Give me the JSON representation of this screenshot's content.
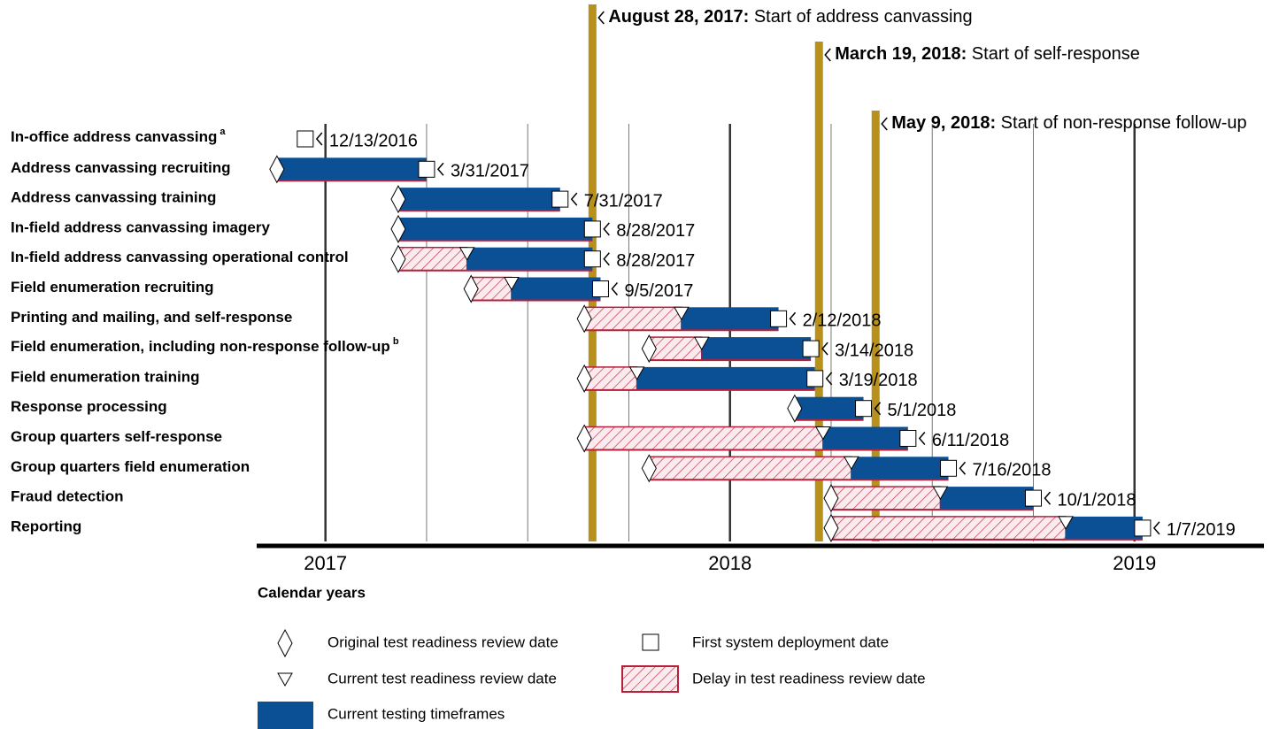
{
  "chart_data": {
    "type": "gantt",
    "x_label": "Calendar years",
    "xlim": [
      2016.83,
      2019.32
    ],
    "xticks": [
      2017,
      2018,
      2019
    ],
    "minor_xticks": [
      2017.25,
      2017.5,
      2017.75,
      2018.25,
      2018.5,
      2018.75
    ],
    "colors": {
      "bar": "#0b4f95",
      "delay": "#b5213b",
      "milestone": "#b8901c"
    },
    "milestones": [
      {
        "value": 2017.66,
        "date_label": "August 28, 2017:",
        "text": "Start of address canvassing"
      },
      {
        "value": 2018.22,
        "date_label": "March 19, 2018:",
        "text": "Start of self-response"
      },
      {
        "value": 2018.36,
        "date_label": "May 9, 2018:",
        "text": "Start of non-response follow-up"
      }
    ],
    "tasks": [
      {
        "name": "In-office address canvassing",
        "note": "a",
        "original": null,
        "current": null,
        "deploy": {
          "value": 2016.95,
          "label": "12/13/2016"
        }
      },
      {
        "name": "Address canvassing recruiting",
        "original": 2016.88,
        "current": null,
        "deploy": {
          "value": 2017.25,
          "label": "3/31/2017"
        }
      },
      {
        "name": "Address canvassing training",
        "original": 2017.18,
        "current": null,
        "deploy": {
          "value": 2017.58,
          "label": "7/31/2017"
        }
      },
      {
        "name": "In-field address canvassing imagery",
        "original": 2017.18,
        "current": null,
        "deploy": {
          "value": 2017.66,
          "label": "8/28/2017"
        }
      },
      {
        "name": "In-field address canvassing operational control",
        "original": 2017.18,
        "current": 2017.35,
        "deploy": {
          "value": 2017.66,
          "label": "8/28/2017"
        }
      },
      {
        "name": "Field enumeration recruiting",
        "original": 2017.36,
        "current": 2017.46,
        "deploy": {
          "value": 2017.68,
          "label": "9/5/2017"
        }
      },
      {
        "name": "Printing and mailing, and self-response",
        "original": 2017.64,
        "current": 2017.88,
        "deploy": {
          "value": 2018.12,
          "label": "2/12/2018"
        }
      },
      {
        "name": "Field enumeration, including non-response follow-up",
        "note": "b",
        "original": 2017.8,
        "current": 2017.93,
        "deploy": {
          "value": 2018.2,
          "label": "3/14/2018"
        }
      },
      {
        "name": "Field enumeration training",
        "original": 2017.64,
        "current": 2017.77,
        "deploy": {
          "value": 2018.21,
          "label": "3/19/2018"
        }
      },
      {
        "name": "Response processing",
        "original": 2018.16,
        "current": null,
        "deploy": {
          "value": 2018.33,
          "label": "5/1/2018"
        }
      },
      {
        "name": "Group quarters self-response",
        "original": 2017.64,
        "current": 2018.23,
        "deploy": {
          "value": 2018.44,
          "label": "6/11/2018"
        }
      },
      {
        "name": "Group quarters field enumeration",
        "original": 2017.8,
        "current": 2018.3,
        "deploy": {
          "value": 2018.54,
          "label": "7/16/2018"
        }
      },
      {
        "name": "Fraud detection",
        "original": 2018.25,
        "current": 2018.52,
        "deploy": {
          "value": 2018.75,
          "label": "10/1/2018"
        }
      },
      {
        "name": "Reporting",
        "original": 2018.25,
        "current": 2018.83,
        "deploy": {
          "value": 2019.02,
          "label": "1/7/2019"
        }
      }
    ],
    "legend": {
      "original": "Original test readiness review date",
      "current": "Current test readiness review date",
      "bar": "Current testing timeframes",
      "deploy": "First system deployment date",
      "delay": "Delay in test readiness review date"
    }
  }
}
